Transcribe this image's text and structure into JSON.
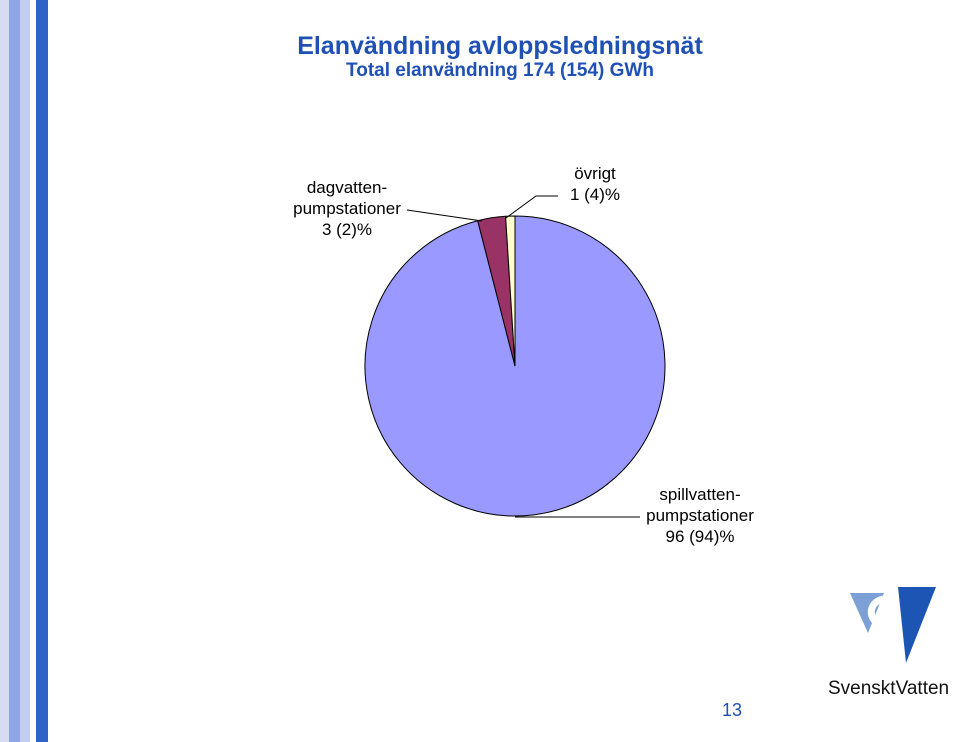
{
  "slide": {
    "title": "Elanvändning avloppsledningsnät",
    "subtitle": "Total elanvändning 174 (154) GWh",
    "page_number": "13",
    "logo": {
      "text": "SvensktVatten",
      "icon": "svenskt-vatten-logo-icon",
      "colors": {
        "light": "#7c9fd6",
        "dark": "#1d55b5"
      }
    }
  },
  "chart_data": {
    "type": "pie",
    "title": "",
    "slices": [
      {
        "label_lines": [
          "spillvatten-",
          "pumpstationer",
          "96 (94)%"
        ],
        "value": 96,
        "previous": 94,
        "color": "#9999ff"
      },
      {
        "label_lines": [
          "dagvatten-",
          "pumpstationer",
          "3 (2)%"
        ],
        "value": 3,
        "previous": 2,
        "color": "#993366"
      },
      {
        "label_lines": [
          "övrigt",
          "1 (4)%"
        ],
        "value": 1,
        "previous": 4,
        "color": "#ffffcc"
      }
    ],
    "start_angle": "12 o'clock",
    "direction": "clockwise",
    "legend": "none"
  }
}
